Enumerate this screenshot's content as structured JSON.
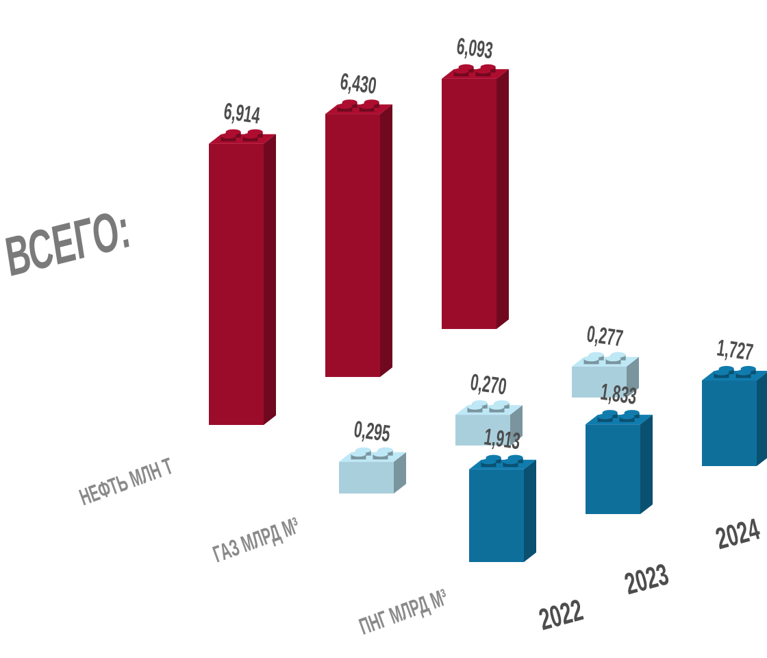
{
  "chart_data": {
    "type": "bar",
    "title": "ВСЕГО:",
    "categories": [
      "2022",
      "2023",
      "2024"
    ],
    "series": [
      {
        "name": "НЕФТЬ МЛН Т",
        "color": "#9b0c2b",
        "values": [
          6.914,
          6.43,
          6.093
        ],
        "value_labels": [
          "6,914",
          "6,430",
          "6,093"
        ]
      },
      {
        "name": "ГАЗ МЛРД М³",
        "color": "#aacfdc",
        "values": [
          0.295,
          0.27,
          0.277
        ],
        "value_labels": [
          "0,295",
          "0,270",
          "0,277"
        ]
      },
      {
        "name": "ПНГ МЛРД М³",
        "color": "#0e6f9b",
        "values": [
          1.913,
          1.833,
          1.727
        ],
        "value_labels": [
          "1,913",
          "1,833",
          "1,727"
        ]
      }
    ]
  }
}
